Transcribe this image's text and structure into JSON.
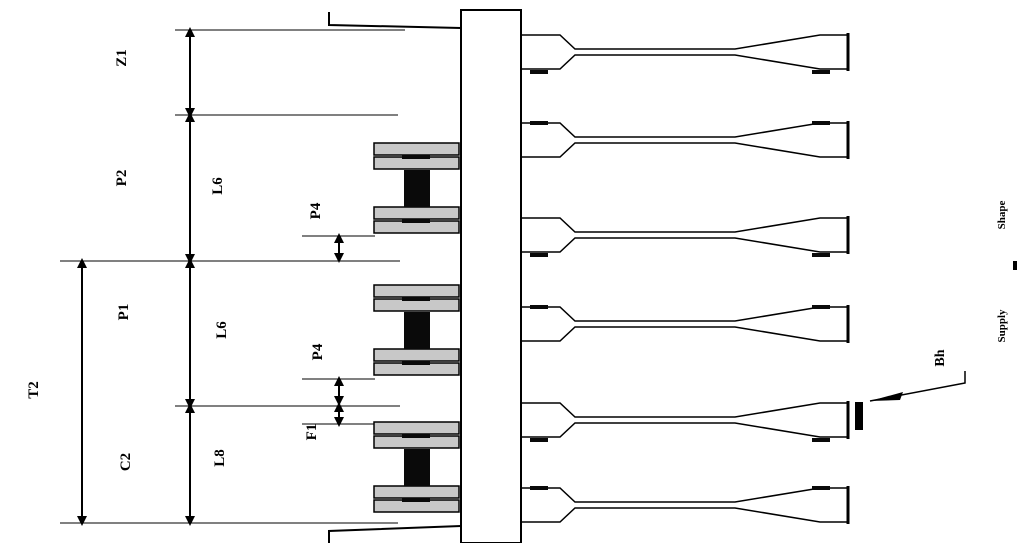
{
  "colors": {
    "line": "#000000",
    "plate_fill": "#c8c8c8",
    "core_fill": "#0a0a0a",
    "background": "#ffffff"
  },
  "dimensions": {
    "top_left": "Z1",
    "pitch_upper": "P2",
    "pitch_middle": "P1",
    "total": "T2",
    "lower_left": "C2",
    "span_upper": "L6",
    "span_middle": "L6",
    "span_lower": "L8",
    "gap_upper": "P4",
    "gap_middle": "P4",
    "gap_small": "F1"
  },
  "labels": {
    "pointer_label": "Bh",
    "side_text_top": "Shape",
    "side_text_bottom": "Supply"
  }
}
